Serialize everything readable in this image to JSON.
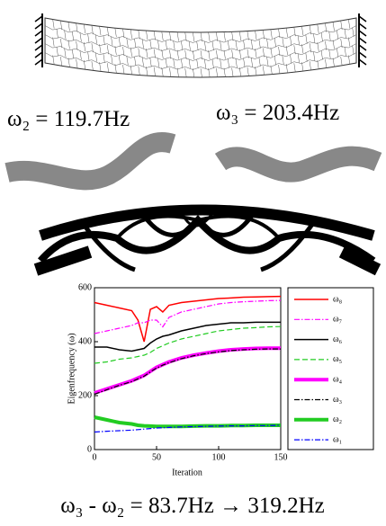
{
  "labels": {
    "mode_2": "ω₂ = 119.7Hz",
    "mode_3": "ω₃ = 203.4Hz",
    "result": "ω₃ - ω₂ = 83.7Hz → 319.2Hz"
  },
  "chart_data": {
    "type": "line",
    "x_label": "Iteration",
    "y_label": "Eigenfrequency (ω)",
    "x": [
      0,
      10,
      20,
      30,
      35,
      40,
      45,
      50,
      55,
      60,
      70,
      80,
      90,
      100,
      110,
      120,
      130,
      140,
      150
    ],
    "series": [
      {
        "name": "ω₈",
        "color": "#ff0000",
        "style": "solid",
        "width": 1.5,
        "values": [
          545,
          535,
          525,
          515,
          480,
          400,
          520,
          530,
          510,
          535,
          545,
          550,
          555,
          560,
          562,
          565,
          566,
          567,
          568
        ]
      },
      {
        "name": "ω₇",
        "color": "#ff00ff",
        "style": "dash-dot",
        "width": 1.2,
        "values": [
          430,
          440,
          450,
          460,
          470,
          470,
          480,
          480,
          455,
          490,
          510,
          520,
          530,
          540,
          545,
          548,
          550,
          552,
          553
        ]
      },
      {
        "name": "ω₆",
        "color": "#000000",
        "style": "solid",
        "width": 1.5,
        "values": [
          380,
          380,
          370,
          365,
          370,
          375,
          395,
          410,
          420,
          425,
          440,
          450,
          460,
          465,
          470,
          470,
          472,
          472,
          472
        ]
      },
      {
        "name": "ω₅",
        "color": "#22cc22",
        "style": "dash",
        "width": 1.2,
        "values": [
          320,
          325,
          335,
          340,
          345,
          350,
          360,
          375,
          385,
          395,
          410,
          420,
          430,
          440,
          445,
          450,
          452,
          455,
          456
        ]
      },
      {
        "name": "ω₄",
        "color": "#ff00ff",
        "style": "solid",
        "width": 4,
        "values": [
          210,
          225,
          240,
          255,
          265,
          275,
          290,
          305,
          315,
          325,
          340,
          350,
          358,
          365,
          370,
          373,
          375,
          376,
          376
        ]
      },
      {
        "name": "ω₃",
        "color": "#000000",
        "style": "dash-dot",
        "width": 1.2,
        "values": [
          205,
          222,
          238,
          252,
          262,
          272,
          288,
          302,
          313,
          322,
          337,
          348,
          356,
          362,
          367,
          370,
          372,
          373,
          373
        ]
      },
      {
        "name": "ω₂",
        "color": "#22cc22",
        "style": "solid",
        "width": 4,
        "values": [
          120,
          110,
          100,
          95,
          90,
          88,
          87,
          86,
          86,
          86,
          86,
          87,
          88,
          88,
          89,
          89,
          90,
          90,
          90
        ]
      },
      {
        "name": "ω₁",
        "color": "#0000ff",
        "style": "dash-dot",
        "width": 1.2,
        "values": [
          65,
          68,
          70,
          72,
          74,
          76,
          78,
          80,
          81,
          82,
          84,
          85,
          86,
          87,
          88,
          88,
          89,
          89,
          90
        ]
      }
    ],
    "xlim": [
      0,
      150
    ],
    "xticks": [
      0,
      50,
      100,
      150
    ],
    "ylim": [
      0,
      600
    ],
    "yticks": [
      0,
      200,
      400,
      600
    ]
  }
}
